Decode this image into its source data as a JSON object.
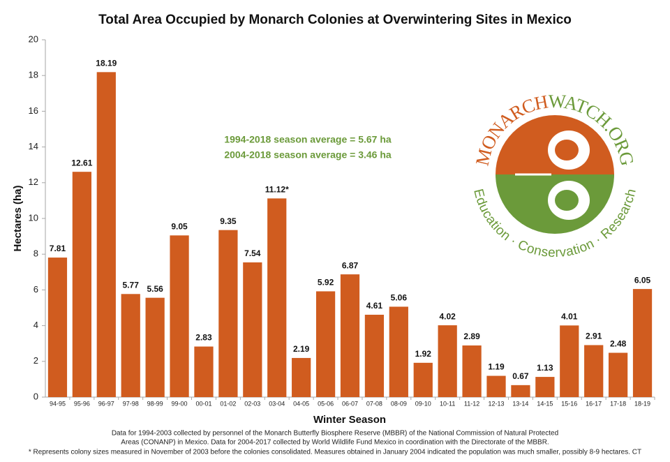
{
  "chart_data": {
    "type": "bar",
    "title": "Total Area Occupied by Monarch Colonies at Overwintering Sites in Mexico",
    "x_label": "Winter Season",
    "y_label": "Hectares (ha)",
    "categories": [
      "94-95",
      "95-96",
      "96-97",
      "97-98",
      "98-99",
      "99-00",
      "00-01",
      "01-02",
      "02-03",
      "03-04",
      "04-05",
      "05-06",
      "06-07",
      "07-08",
      "08-09",
      "09-10",
      "10-11",
      "11-12",
      "12-13",
      "13-14",
      "14-15",
      "15-16",
      "16-17",
      "17-18",
      "18-19"
    ],
    "values": [
      7.81,
      12.61,
      18.19,
      5.77,
      5.56,
      9.05,
      2.83,
      9.35,
      7.54,
      11.12,
      2.19,
      5.92,
      6.87,
      4.61,
      5.06,
      1.92,
      4.02,
      2.89,
      1.19,
      0.67,
      1.13,
      4.01,
      2.91,
      2.48,
      6.05
    ],
    "value_labels": [
      "7.81",
      "12.61",
      "18.19",
      "5.77",
      "5.56",
      "9.05",
      "2.83",
      "9.35",
      "7.54",
      "11.12*",
      "2.19",
      "5.92",
      "6.87",
      "4.61",
      "5.06",
      "1.92",
      "4.02",
      "2.89",
      "1.19",
      "0.67",
      "1.13",
      "4.01",
      "2.91",
      "2.48",
      "6.05"
    ],
    "color": "#d05c1f",
    "ylim": [
      0,
      20
    ],
    "yticks": [
      0,
      2,
      4,
      6,
      8,
      10,
      12,
      14,
      16,
      18,
      20
    ],
    "grid": false,
    "annotations": [
      "1994-2018 season average = 5.67 ha",
      "2004-2018 season average = 3.46 ha"
    ],
    "footnotes": [
      "Data for 1994-2003 collected by personnel of the Monarch Butterfly Biosphere Reserve (MBBR) of the National Commission of Natural Protected",
      "Areas (CONANP) in Mexico. Data for 2004-2017 collected by World Wildlife Fund Mexico in coordination with the Directorate of the MBBR.",
      "* Represents colony sizes measured in November of 2003 before the colonies consolidated. Measures obtained in January 2004 indicated the population was much smaller, possibly 8-9 hectares. CT"
    ]
  },
  "logo": {
    "name_part1": "MONARCH",
    "name_part2": "WATCH.ORG",
    "tagline": "Education · Conservation · Research"
  }
}
